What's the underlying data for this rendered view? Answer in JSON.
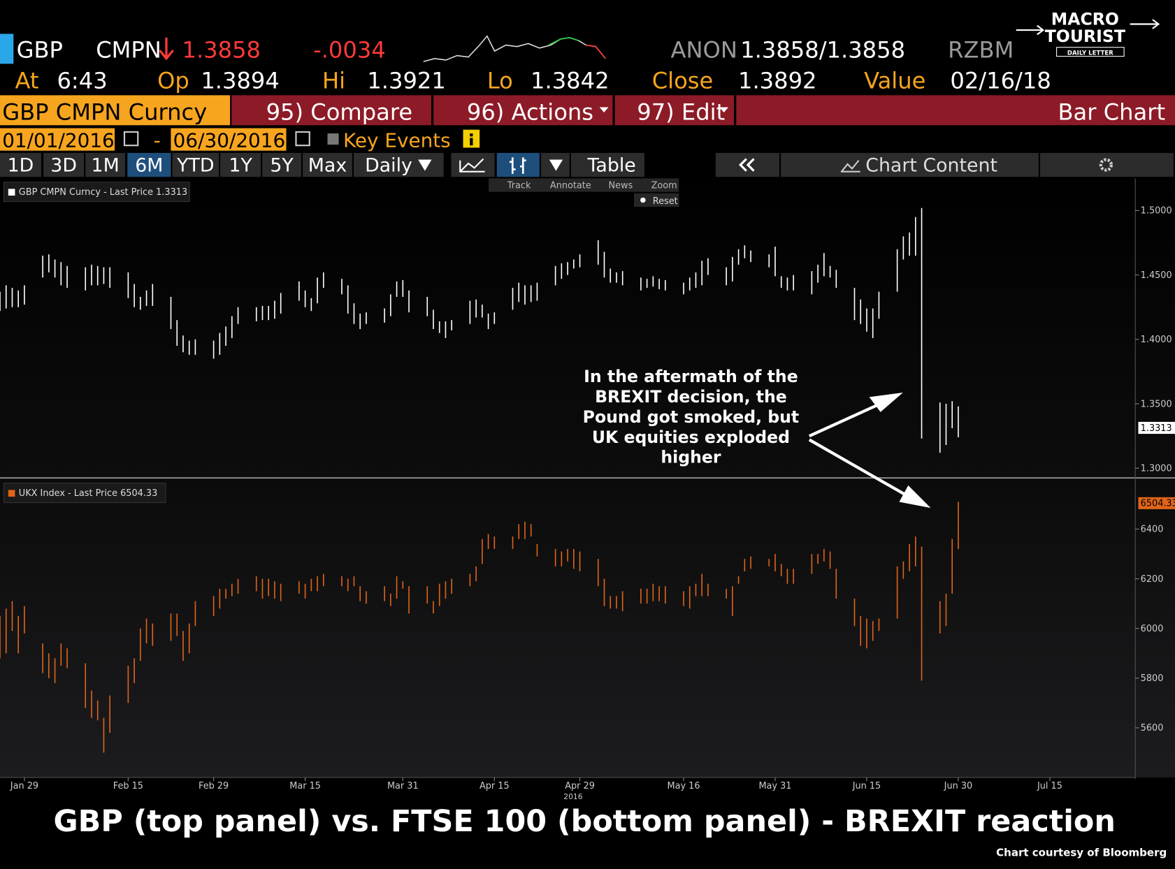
{
  "header": {
    "ticker": "GBP",
    "source": "CMPN",
    "last": "1.3858",
    "change": "-.0034",
    "bid_source": "ANON",
    "bid_ask": "1.3858/1.3858",
    "ask_source": "RZBM",
    "stats": [
      {
        "label": "At",
        "value": "6:43"
      },
      {
        "label": "Op",
        "value": "1.3894"
      },
      {
        "label": "Hi",
        "value": "1.3921"
      },
      {
        "label": "Lo",
        "value": "1.3842"
      },
      {
        "label": "Close",
        "value": "1.3892"
      },
      {
        "label": "Value",
        "value": "02/16/18"
      }
    ]
  },
  "logo": {
    "line1": "MACRO",
    "line2": "TOURIST",
    "tagline": "DAILY LETTER"
  },
  "menu": {
    "security": "GBP CMPN Curncy",
    "items": [
      "95) Compare",
      "96) Actions",
      "97) Edit"
    ],
    "view": "Bar Chart"
  },
  "range": {
    "start": "01/01/2016",
    "separator": "-",
    "end": "06/30/2016",
    "key_events": "Key Events"
  },
  "periods": [
    "1D",
    "3D",
    "1M",
    "6M",
    "YTD",
    "1Y",
    "5Y",
    "Max"
  ],
  "selected_period": "6M",
  "frequency": "Daily",
  "table": "Table",
  "chart_content": "Chart Content",
  "tools": [
    "Track",
    "Annotate",
    "News",
    "Zoom"
  ],
  "reset": "Reset",
  "chart_data": {
    "type": "ohlc",
    "x": [
      "2016-01-25",
      "2016-01-26",
      "2016-01-27",
      "2016-01-28",
      "2016-01-29",
      "2016-02-01",
      "2016-02-02",
      "2016-02-03",
      "2016-02-04",
      "2016-02-05",
      "2016-02-08",
      "2016-02-09",
      "2016-02-10",
      "2016-02-11",
      "2016-02-12",
      "2016-02-15",
      "2016-02-16",
      "2016-02-17",
      "2016-02-18",
      "2016-02-19",
      "2016-02-22",
      "2016-02-23",
      "2016-02-24",
      "2016-02-25",
      "2016-02-26",
      "2016-02-29",
      "2016-03-01",
      "2016-03-02",
      "2016-03-03",
      "2016-03-04",
      "2016-03-07",
      "2016-03-08",
      "2016-03-09",
      "2016-03-10",
      "2016-03-11",
      "2016-03-14",
      "2016-03-15",
      "2016-03-16",
      "2016-03-17",
      "2016-03-18",
      "2016-03-21",
      "2016-03-22",
      "2016-03-23",
      "2016-03-24",
      "2016-03-25",
      "2016-03-28",
      "2016-03-29",
      "2016-03-30",
      "2016-03-31",
      "2016-04-01",
      "2016-04-04",
      "2016-04-05",
      "2016-04-06",
      "2016-04-07",
      "2016-04-08",
      "2016-04-11",
      "2016-04-12",
      "2016-04-13",
      "2016-04-14",
      "2016-04-15",
      "2016-04-18",
      "2016-04-19",
      "2016-04-20",
      "2016-04-21",
      "2016-04-22",
      "2016-04-25",
      "2016-04-26",
      "2016-04-27",
      "2016-04-28",
      "2016-04-29",
      "2016-05-02",
      "2016-05-03",
      "2016-05-04",
      "2016-05-05",
      "2016-05-06",
      "2016-05-09",
      "2016-05-10",
      "2016-05-11",
      "2016-05-12",
      "2016-05-13",
      "2016-05-16",
      "2016-05-17",
      "2016-05-18",
      "2016-05-19",
      "2016-05-20",
      "2016-05-23",
      "2016-05-24",
      "2016-05-25",
      "2016-05-26",
      "2016-05-27",
      "2016-05-30",
      "2016-05-31",
      "2016-06-01",
      "2016-06-02",
      "2016-06-03",
      "2016-06-06",
      "2016-06-07",
      "2016-06-08",
      "2016-06-09",
      "2016-06-10",
      "2016-06-13",
      "2016-06-14",
      "2016-06-15",
      "2016-06-16",
      "2016-06-17",
      "2016-06-20",
      "2016-06-21",
      "2016-06-22",
      "2016-06-23",
      "2016-06-24",
      "2016-06-27",
      "2016-06-28",
      "2016-06-29",
      "2016-06-30"
    ],
    "xlim": [
      "2016-01-25",
      "2016-07-29"
    ],
    "xticks": [
      {
        "value": "2016-01-29",
        "label": "Jan 29"
      },
      {
        "value": "2016-02-15",
        "label": "Feb 15"
      },
      {
        "value": "2016-02-29",
        "label": "Feb 29"
      },
      {
        "value": "2016-03-15",
        "label": "Mar 15"
      },
      {
        "value": "2016-03-31",
        "label": "Mar 31"
      },
      {
        "value": "2016-04-15",
        "label": "Apr 15"
      },
      {
        "value": "2016-04-29",
        "label": "Apr 29"
      },
      {
        "value": "2016-05-16",
        "label": "May 16"
      },
      {
        "value": "2016-05-31",
        "label": "May 31"
      },
      {
        "value": "2016-06-15",
        "label": "Jun 15"
      },
      {
        "value": "2016-06-30",
        "label": "Jun 30"
      },
      {
        "value": "2016-07-15",
        "label": "Jul 15"
      }
    ],
    "year_label": "2016",
    "ylim": [
      1.293,
      1.525
    ],
    "yticks": [
      {
        "value": 1.3,
        "label": "1.3000"
      },
      {
        "value": 1.35,
        "label": "1.3500"
      },
      {
        "value": 1.4,
        "label": "1.4000"
      },
      {
        "value": 1.45,
        "label": "1.4500"
      },
      {
        "value": 1.5,
        "label": "1.5000"
      }
    ],
    "y2lim": [
      5400,
      6600
    ],
    "y2ticks": [
      5600,
      5800,
      6000,
      6200,
      6400
    ],
    "series": [
      {
        "name": "GBP CMPN Curncy - Last Price 1.3313",
        "color": "#ffffff",
        "last_value": 1.3313,
        "high": [
          1.437,
          1.442,
          1.44,
          1.438,
          1.442,
          1.465,
          1.466,
          1.462,
          1.46,
          1.457,
          1.456,
          1.458,
          1.457,
          1.456,
          1.456,
          1.452,
          1.443,
          1.433,
          1.438,
          1.443,
          1.433,
          1.415,
          1.403,
          1.399,
          1.4,
          1.399,
          1.405,
          1.41,
          1.418,
          1.425,
          1.425,
          1.426,
          1.426,
          1.43,
          1.436,
          1.445,
          1.438,
          1.432,
          1.448,
          1.452,
          1.447,
          1.442,
          1.428,
          1.42,
          1.421,
          1.424,
          1.435,
          1.445,
          1.446,
          1.438,
          1.433,
          1.423,
          1.414,
          1.414,
          1.415,
          1.43,
          1.431,
          1.427,
          1.42,
          1.421,
          1.44,
          1.444,
          1.442,
          1.442,
          1.444,
          1.457,
          1.459,
          1.46,
          1.462,
          1.466,
          1.477,
          1.468,
          1.455,
          1.452,
          1.453,
          1.448,
          1.447,
          1.449,
          1.447,
          1.446,
          1.444,
          1.448,
          1.452,
          1.461,
          1.463,
          1.456,
          1.464,
          1.47,
          1.473,
          1.469,
          1.466,
          1.472,
          1.449,
          1.448,
          1.45,
          1.453,
          1.458,
          1.467,
          1.457,
          1.454,
          1.44,
          1.431,
          1.424,
          1.424,
          1.437,
          1.47,
          1.48,
          1.483,
          1.495,
          1.502,
          1.351,
          1.35,
          1.352,
          1.348
        ],
        "low": [
          1.422,
          1.424,
          1.425,
          1.425,
          1.427,
          1.448,
          1.452,
          1.448,
          1.442,
          1.44,
          1.438,
          1.442,
          1.442,
          1.443,
          1.44,
          1.432,
          1.425,
          1.423,
          1.426,
          1.426,
          1.408,
          1.395,
          1.39,
          1.388,
          1.388,
          1.385,
          1.388,
          1.395,
          1.401,
          1.412,
          1.414,
          1.415,
          1.415,
          1.416,
          1.42,
          1.43,
          1.425,
          1.422,
          1.428,
          1.44,
          1.435,
          1.42,
          1.412,
          1.408,
          1.412,
          1.413,
          1.418,
          1.433,
          1.433,
          1.421,
          1.418,
          1.408,
          1.405,
          1.401,
          1.407,
          1.412,
          1.417,
          1.417,
          1.408,
          1.412,
          1.423,
          1.429,
          1.427,
          1.429,
          1.43,
          1.442,
          1.447,
          1.45,
          1.455,
          1.456,
          1.458,
          1.448,
          1.444,
          1.444,
          1.442,
          1.438,
          1.44,
          1.441,
          1.439,
          1.438,
          1.435,
          1.438,
          1.44,
          1.442,
          1.45,
          1.442,
          1.445,
          1.458,
          1.463,
          1.46,
          1.456,
          1.449,
          1.44,
          1.438,
          1.438,
          1.435,
          1.444,
          1.449,
          1.448,
          1.44,
          1.415,
          1.412,
          1.406,
          1.401,
          1.416,
          1.437,
          1.462,
          1.465,
          1.465,
          1.323,
          1.312,
          1.318,
          1.331,
          1.324
        ]
      },
      {
        "name": "UKX Index - Last Price 6504.33",
        "color": "#e0641a",
        "axis": "y2",
        "last_value": 6504.33,
        "high": [
          6050,
          6080,
          6110,
          6050,
          6090,
          5940,
          5900,
          5880,
          5940,
          5920,
          5860,
          5750,
          5710,
          5640,
          5730,
          5850,
          5880,
          6000,
          6040,
          6020,
          6060,
          6060,
          5990,
          6020,
          6110,
          6130,
          6160,
          6160,
          6180,
          6200,
          6210,
          6200,
          6200,
          6190,
          6180,
          6190,
          6180,
          6200,
          6210,
          6220,
          6210,
          6200,
          6210,
          6170,
          6150,
          6170,
          6140,
          6210,
          6190,
          6170,
          6170,
          6110,
          6180,
          6190,
          6200,
          6220,
          6250,
          6360,
          6380,
          6370,
          6370,
          6420,
          6430,
          6420,
          6340,
          6320,
          6310,
          6320,
          6320,
          6310,
          6280,
          6200,
          6130,
          6130,
          6150,
          6160,
          6160,
          6180,
          6170,
          6170,
          6150,
          6170,
          6180,
          6220,
          6180,
          6160,
          6170,
          6210,
          6280,
          6290,
          6280,
          6300,
          6260,
          6240,
          6240,
          6300,
          6300,
          6320,
          6310,
          6240,
          6120,
          6050,
          6040,
          6030,
          6040,
          6250,
          6270,
          6340,
          6370,
          6330,
          6110,
          6140,
          6360,
          6510
        ],
        "low": [
          5880,
          5900,
          5990,
          5900,
          5980,
          5820,
          5800,
          5780,
          5850,
          5840,
          5680,
          5640,
          5630,
          5500,
          5580,
          5700,
          5780,
          5870,
          5940,
          5930,
          5950,
          5970,
          5870,
          5900,
          6010,
          6050,
          6080,
          6120,
          6130,
          6140,
          6150,
          6120,
          6130,
          6120,
          6110,
          6140,
          6120,
          6150,
          6150,
          6170,
          6170,
          6150,
          6170,
          6110,
          6100,
          6110,
          6090,
          6120,
          6160,
          6060,
          6100,
          6060,
          6090,
          6120,
          6140,
          6170,
          6190,
          6260,
          6320,
          6320,
          6320,
          6360,
          6360,
          6370,
          6290,
          6250,
          6250,
          6270,
          6240,
          6230,
          6170,
          6090,
          6080,
          6080,
          6070,
          6100,
          6100,
          6110,
          6110,
          6100,
          6090,
          6080,
          6130,
          6130,
          6130,
          6120,
          6050,
          6180,
          6230,
          6240,
          6250,
          6230,
          6210,
          6180,
          6180,
          6220,
          6260,
          6270,
          6240,
          6120,
          6010,
          5930,
          5920,
          5950,
          5990,
          6040,
          6200,
          6230,
          6250,
          5790,
          5980,
          6010,
          6140,
          6320
        ]
      }
    ],
    "annotation": [
      "In the aftermath of the",
      "BREXIT decision, the",
      "Pound got smoked, but",
      "UK equities exploded",
      "higher"
    ],
    "caption": "GBP (top panel) vs. FTSE 100 (bottom panel) - BREXIT reaction",
    "credit": "Chart courtesy of Bloomberg"
  }
}
